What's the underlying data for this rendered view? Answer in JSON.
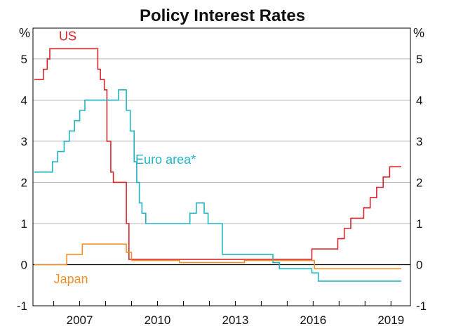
{
  "chart_data": {
    "type": "line",
    "title": "Policy Interest Rates",
    "ylabel_left": "%",
    "ylabel_right": "%",
    "ylim": [
      -1,
      5.75
    ],
    "xlim": [
      2005.2,
      2019.75
    ],
    "y_ticks": [
      -1,
      0,
      1,
      2,
      3,
      4,
      5
    ],
    "y_tick_labels": [
      "-1",
      "0",
      "1",
      "2",
      "3",
      "4",
      "5"
    ],
    "x_ticks": [
      2007,
      2010,
      2013,
      2016,
      2019
    ],
    "x_tick_labels": [
      "2007",
      "2010",
      "2013",
      "2016",
      "2019"
    ],
    "grid": "horizontal",
    "zero_line": true,
    "series": [
      {
        "name": "US",
        "color": "#d7252b",
        "step": true,
        "x": [
          2005.25,
          2005.4,
          2005.6,
          2005.75,
          2005.85,
          2006.0,
          2006.2,
          2006.5,
          2007.7,
          2007.8,
          2007.95,
          2008.05,
          2008.2,
          2008.3,
          2008.45,
          2008.8,
          2008.9,
          2015.95,
          2016.95,
          2017.2,
          2017.45,
          2017.95,
          2018.2,
          2018.45,
          2018.7,
          2018.95,
          2019.4
        ],
        "y": [
          4.5,
          4.5,
          4.75,
          5.0,
          5.25,
          5.25,
          5.25,
          5.25,
          4.75,
          4.5,
          4.25,
          3.0,
          2.25,
          2.0,
          2.0,
          1.0,
          0.13,
          0.38,
          0.63,
          0.88,
          1.13,
          1.38,
          1.63,
          1.88,
          2.13,
          2.38,
          2.38
        ]
      },
      {
        "name": "Euro area*",
        "color": "#20b5c3",
        "step": true,
        "x": [
          2005.25,
          2005.95,
          2006.15,
          2006.4,
          2006.6,
          2006.8,
          2007.0,
          2007.2,
          2007.45,
          2008.5,
          2008.8,
          2008.95,
          2009.1,
          2009.2,
          2009.3,
          2009.4,
          2009.55,
          2011.25,
          2011.5,
          2011.8,
          2011.95,
          2012.5,
          2014.45,
          2014.7,
          2015.95,
          2016.2,
          2019.4
        ],
        "y": [
          2.25,
          2.5,
          2.75,
          3.0,
          3.25,
          3.5,
          3.75,
          4.0,
          4.0,
          4.25,
          3.75,
          3.25,
          2.5,
          2.0,
          1.5,
          1.25,
          1.0,
          1.25,
          1.5,
          1.25,
          1.0,
          0.25,
          0.05,
          -0.1,
          -0.2,
          -0.4,
          -0.4
        ]
      },
      {
        "name": "Japan",
        "color": "#f0922b",
        "step": true,
        "x": [
          2005.25,
          2006.5,
          2007.1,
          2008.8,
          2009.0,
          2010.85,
          2013.35,
          2016.05,
          2019.4
        ],
        "y": [
          0.0,
          0.25,
          0.5,
          0.3,
          0.1,
          0.05,
          0.1,
          -0.1,
          -0.1
        ]
      }
    ],
    "annotations": [
      {
        "text": "US",
        "series": "US"
      },
      {
        "text": "Euro area*",
        "series": "Euro area*"
      },
      {
        "text": "Japan",
        "series": "Japan"
      }
    ]
  }
}
